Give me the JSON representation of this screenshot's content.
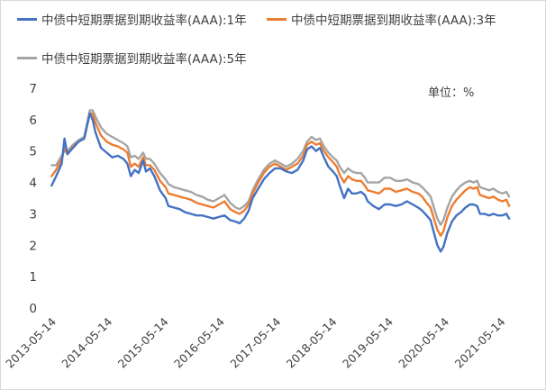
{
  "chart_data": {
    "type": "line",
    "title": "",
    "unit_label": "单位：%",
    "ylim": [
      0,
      7
    ],
    "yticks": [
      0,
      1,
      2,
      3,
      4,
      5,
      6,
      7
    ],
    "x_tick_labels": [
      "2013-05-14",
      "2014-05-14",
      "2015-05-14",
      "2016-05-14",
      "2017-05-14",
      "2018-05-14",
      "2019-05-14",
      "2020-05-14",
      "2021-05-14"
    ],
    "x_range": [
      2013.365,
      2021.55
    ],
    "grid": "none",
    "legend_position": "top",
    "series": [
      {
        "name": "中债中短期票据到期收益率(AAA):1年",
        "color": "#4472C4",
        "points": [
          [
            2013.37,
            3.9
          ],
          [
            2013.45,
            4.2
          ],
          [
            2013.55,
            4.6
          ],
          [
            2013.6,
            5.4
          ],
          [
            2013.65,
            4.9
          ],
          [
            2013.75,
            5.1
          ],
          [
            2013.85,
            5.3
          ],
          [
            2013.95,
            5.4
          ],
          [
            2014.05,
            6.2
          ],
          [
            2014.1,
            6.0
          ],
          [
            2014.15,
            5.6
          ],
          [
            2014.25,
            5.1
          ],
          [
            2014.35,
            4.95
          ],
          [
            2014.45,
            4.8
          ],
          [
            2014.55,
            4.85
          ],
          [
            2014.65,
            4.75
          ],
          [
            2014.72,
            4.6
          ],
          [
            2014.78,
            4.2
          ],
          [
            2014.85,
            4.4
          ],
          [
            2014.92,
            4.3
          ],
          [
            2015.0,
            4.7
          ],
          [
            2015.05,
            4.35
          ],
          [
            2015.12,
            4.45
          ],
          [
            2015.2,
            4.2
          ],
          [
            2015.3,
            3.75
          ],
          [
            2015.4,
            3.5
          ],
          [
            2015.45,
            3.25
          ],
          [
            2015.55,
            3.2
          ],
          [
            2015.65,
            3.15
          ],
          [
            2015.75,
            3.05
          ],
          [
            2015.85,
            3.0
          ],
          [
            2015.95,
            2.95
          ],
          [
            2016.05,
            2.95
          ],
          [
            2016.15,
            2.9
          ],
          [
            2016.25,
            2.85
          ],
          [
            2016.35,
            2.9
          ],
          [
            2016.45,
            2.95
          ],
          [
            2016.55,
            2.8
          ],
          [
            2016.65,
            2.75
          ],
          [
            2016.72,
            2.7
          ],
          [
            2016.8,
            2.85
          ],
          [
            2016.88,
            3.1
          ],
          [
            2016.95,
            3.5
          ],
          [
            2017.05,
            3.8
          ],
          [
            2017.15,
            4.1
          ],
          [
            2017.25,
            4.3
          ],
          [
            2017.35,
            4.45
          ],
          [
            2017.45,
            4.45
          ],
          [
            2017.55,
            4.35
          ],
          [
            2017.65,
            4.3
          ],
          [
            2017.75,
            4.4
          ],
          [
            2017.85,
            4.7
          ],
          [
            2017.92,
            5.05
          ],
          [
            2018.0,
            5.15
          ],
          [
            2018.08,
            5.0
          ],
          [
            2018.15,
            5.1
          ],
          [
            2018.22,
            4.8
          ],
          [
            2018.3,
            4.5
          ],
          [
            2018.38,
            4.35
          ],
          [
            2018.45,
            4.2
          ],
          [
            2018.5,
            3.9
          ],
          [
            2018.58,
            3.5
          ],
          [
            2018.65,
            3.8
          ],
          [
            2018.72,
            3.65
          ],
          [
            2018.8,
            3.65
          ],
          [
            2018.88,
            3.7
          ],
          [
            2018.95,
            3.6
          ],
          [
            2019.0,
            3.4
          ],
          [
            2019.1,
            3.25
          ],
          [
            2019.2,
            3.15
          ],
          [
            2019.3,
            3.3
          ],
          [
            2019.4,
            3.3
          ],
          [
            2019.5,
            3.25
          ],
          [
            2019.6,
            3.3
          ],
          [
            2019.7,
            3.4
          ],
          [
            2019.8,
            3.3
          ],
          [
            2019.9,
            3.2
          ],
          [
            2019.97,
            3.1
          ],
          [
            2020.05,
            2.95
          ],
          [
            2020.12,
            2.8
          ],
          [
            2020.18,
            2.4
          ],
          [
            2020.24,
            2.0
          ],
          [
            2020.3,
            1.8
          ],
          [
            2020.35,
            1.95
          ],
          [
            2020.42,
            2.4
          ],
          [
            2020.5,
            2.75
          ],
          [
            2020.58,
            2.95
          ],
          [
            2020.66,
            3.05
          ],
          [
            2020.74,
            3.2
          ],
          [
            2020.82,
            3.3
          ],
          [
            2020.88,
            3.3
          ],
          [
            2020.95,
            3.25
          ],
          [
            2021.0,
            3.0
          ],
          [
            2021.08,
            3.0
          ],
          [
            2021.16,
            2.95
          ],
          [
            2021.24,
            3.0
          ],
          [
            2021.32,
            2.95
          ],
          [
            2021.4,
            2.95
          ],
          [
            2021.47,
            3.0
          ],
          [
            2021.52,
            2.85
          ]
        ]
      },
      {
        "name": "中债中短期票据到期收益率(AAA):3年",
        "color": "#ED7D31",
        "points": [
          [
            2013.37,
            4.2
          ],
          [
            2013.45,
            4.4
          ],
          [
            2013.55,
            4.75
          ],
          [
            2013.6,
            5.1
          ],
          [
            2013.65,
            4.9
          ],
          [
            2013.75,
            5.15
          ],
          [
            2013.85,
            5.3
          ],
          [
            2013.95,
            5.4
          ],
          [
            2014.05,
            6.2
          ],
          [
            2014.1,
            6.2
          ],
          [
            2014.15,
            5.9
          ],
          [
            2014.25,
            5.5
          ],
          [
            2014.35,
            5.3
          ],
          [
            2014.45,
            5.2
          ],
          [
            2014.55,
            5.15
          ],
          [
            2014.65,
            5.05
          ],
          [
            2014.72,
            4.95
          ],
          [
            2014.78,
            4.5
          ],
          [
            2014.85,
            4.6
          ],
          [
            2014.92,
            4.5
          ],
          [
            2015.0,
            4.8
          ],
          [
            2015.05,
            4.55
          ],
          [
            2015.12,
            4.55
          ],
          [
            2015.2,
            4.4
          ],
          [
            2015.3,
            4.05
          ],
          [
            2015.4,
            3.85
          ],
          [
            2015.45,
            3.65
          ],
          [
            2015.55,
            3.6
          ],
          [
            2015.65,
            3.55
          ],
          [
            2015.75,
            3.5
          ],
          [
            2015.85,
            3.45
          ],
          [
            2015.95,
            3.35
          ],
          [
            2016.05,
            3.3
          ],
          [
            2016.15,
            3.25
          ],
          [
            2016.25,
            3.2
          ],
          [
            2016.35,
            3.3
          ],
          [
            2016.45,
            3.4
          ],
          [
            2016.55,
            3.15
          ],
          [
            2016.65,
            3.05
          ],
          [
            2016.72,
            3.0
          ],
          [
            2016.8,
            3.1
          ],
          [
            2016.88,
            3.3
          ],
          [
            2016.95,
            3.65
          ],
          [
            2017.05,
            4.0
          ],
          [
            2017.15,
            4.3
          ],
          [
            2017.25,
            4.5
          ],
          [
            2017.35,
            4.6
          ],
          [
            2017.45,
            4.5
          ],
          [
            2017.55,
            4.4
          ],
          [
            2017.65,
            4.5
          ],
          [
            2017.75,
            4.6
          ],
          [
            2017.85,
            4.85
          ],
          [
            2017.92,
            5.2
          ],
          [
            2018.0,
            5.3
          ],
          [
            2018.08,
            5.2
          ],
          [
            2018.15,
            5.25
          ],
          [
            2018.22,
            5.0
          ],
          [
            2018.3,
            4.8
          ],
          [
            2018.38,
            4.65
          ],
          [
            2018.45,
            4.5
          ],
          [
            2018.5,
            4.25
          ],
          [
            2018.58,
            4.0
          ],
          [
            2018.65,
            4.2
          ],
          [
            2018.72,
            4.1
          ],
          [
            2018.8,
            4.05
          ],
          [
            2018.88,
            4.05
          ],
          [
            2018.95,
            3.9
          ],
          [
            2019.0,
            3.75
          ],
          [
            2019.1,
            3.7
          ],
          [
            2019.2,
            3.65
          ],
          [
            2019.3,
            3.8
          ],
          [
            2019.4,
            3.8
          ],
          [
            2019.5,
            3.7
          ],
          [
            2019.6,
            3.75
          ],
          [
            2019.7,
            3.8
          ],
          [
            2019.8,
            3.7
          ],
          [
            2019.9,
            3.65
          ],
          [
            2019.97,
            3.55
          ],
          [
            2020.05,
            3.35
          ],
          [
            2020.12,
            3.2
          ],
          [
            2020.18,
            2.85
          ],
          [
            2020.24,
            2.5
          ],
          [
            2020.3,
            2.3
          ],
          [
            2020.35,
            2.45
          ],
          [
            2020.42,
            2.9
          ],
          [
            2020.5,
            3.25
          ],
          [
            2020.58,
            3.45
          ],
          [
            2020.66,
            3.6
          ],
          [
            2020.74,
            3.75
          ],
          [
            2020.82,
            3.85
          ],
          [
            2020.88,
            3.8
          ],
          [
            2020.95,
            3.85
          ],
          [
            2021.0,
            3.6
          ],
          [
            2021.08,
            3.55
          ],
          [
            2021.16,
            3.5
          ],
          [
            2021.24,
            3.55
          ],
          [
            2021.32,
            3.45
          ],
          [
            2021.4,
            3.4
          ],
          [
            2021.47,
            3.45
          ],
          [
            2021.52,
            3.25
          ]
        ]
      },
      {
        "name": "中债中短期票据到期收益率(AAA):5年",
        "color": "#A5A5A5",
        "points": [
          [
            2013.37,
            4.55
          ],
          [
            2013.45,
            4.55
          ],
          [
            2013.55,
            4.85
          ],
          [
            2013.6,
            5.0
          ],
          [
            2013.65,
            5.0
          ],
          [
            2013.75,
            5.2
          ],
          [
            2013.85,
            5.35
          ],
          [
            2013.95,
            5.45
          ],
          [
            2014.05,
            6.3
          ],
          [
            2014.1,
            6.3
          ],
          [
            2014.15,
            6.1
          ],
          [
            2014.25,
            5.75
          ],
          [
            2014.35,
            5.55
          ],
          [
            2014.45,
            5.45
          ],
          [
            2014.55,
            5.35
          ],
          [
            2014.65,
            5.25
          ],
          [
            2014.72,
            5.15
          ],
          [
            2014.78,
            4.8
          ],
          [
            2014.85,
            4.85
          ],
          [
            2014.92,
            4.75
          ],
          [
            2015.0,
            4.95
          ],
          [
            2015.05,
            4.75
          ],
          [
            2015.12,
            4.75
          ],
          [
            2015.2,
            4.6
          ],
          [
            2015.3,
            4.3
          ],
          [
            2015.4,
            4.1
          ],
          [
            2015.45,
            3.95
          ],
          [
            2015.55,
            3.85
          ],
          [
            2015.65,
            3.8
          ],
          [
            2015.75,
            3.75
          ],
          [
            2015.85,
            3.7
          ],
          [
            2015.95,
            3.6
          ],
          [
            2016.05,
            3.55
          ],
          [
            2016.15,
            3.45
          ],
          [
            2016.25,
            3.4
          ],
          [
            2016.35,
            3.5
          ],
          [
            2016.45,
            3.6
          ],
          [
            2016.55,
            3.35
          ],
          [
            2016.65,
            3.2
          ],
          [
            2016.72,
            3.15
          ],
          [
            2016.8,
            3.25
          ],
          [
            2016.88,
            3.4
          ],
          [
            2016.95,
            3.75
          ],
          [
            2017.05,
            4.1
          ],
          [
            2017.15,
            4.4
          ],
          [
            2017.25,
            4.6
          ],
          [
            2017.35,
            4.7
          ],
          [
            2017.45,
            4.6
          ],
          [
            2017.55,
            4.5
          ],
          [
            2017.65,
            4.6
          ],
          [
            2017.75,
            4.75
          ],
          [
            2017.85,
            5.0
          ],
          [
            2017.92,
            5.3
          ],
          [
            2018.0,
            5.45
          ],
          [
            2018.08,
            5.35
          ],
          [
            2018.15,
            5.4
          ],
          [
            2018.22,
            5.15
          ],
          [
            2018.3,
            4.95
          ],
          [
            2018.38,
            4.8
          ],
          [
            2018.45,
            4.7
          ],
          [
            2018.5,
            4.5
          ],
          [
            2018.58,
            4.3
          ],
          [
            2018.65,
            4.45
          ],
          [
            2018.72,
            4.35
          ],
          [
            2018.8,
            4.3
          ],
          [
            2018.88,
            4.3
          ],
          [
            2018.95,
            4.15
          ],
          [
            2019.0,
            4.0
          ],
          [
            2019.1,
            4.0
          ],
          [
            2019.2,
            4.0
          ],
          [
            2019.3,
            4.15
          ],
          [
            2019.4,
            4.15
          ],
          [
            2019.5,
            4.05
          ],
          [
            2019.6,
            4.05
          ],
          [
            2019.7,
            4.1
          ],
          [
            2019.8,
            4.0
          ],
          [
            2019.9,
            3.95
          ],
          [
            2019.97,
            3.85
          ],
          [
            2020.05,
            3.7
          ],
          [
            2020.12,
            3.55
          ],
          [
            2020.18,
            3.2
          ],
          [
            2020.24,
            2.85
          ],
          [
            2020.3,
            2.65
          ],
          [
            2020.35,
            2.8
          ],
          [
            2020.42,
            3.2
          ],
          [
            2020.5,
            3.55
          ],
          [
            2020.58,
            3.75
          ],
          [
            2020.66,
            3.9
          ],
          [
            2020.74,
            4.0
          ],
          [
            2020.82,
            4.05
          ],
          [
            2020.88,
            4.0
          ],
          [
            2020.95,
            4.05
          ],
          [
            2021.0,
            3.85
          ],
          [
            2021.08,
            3.8
          ],
          [
            2021.16,
            3.75
          ],
          [
            2021.24,
            3.8
          ],
          [
            2021.32,
            3.7
          ],
          [
            2021.4,
            3.65
          ],
          [
            2021.47,
            3.7
          ],
          [
            2021.52,
            3.55
          ]
        ]
      }
    ]
  }
}
